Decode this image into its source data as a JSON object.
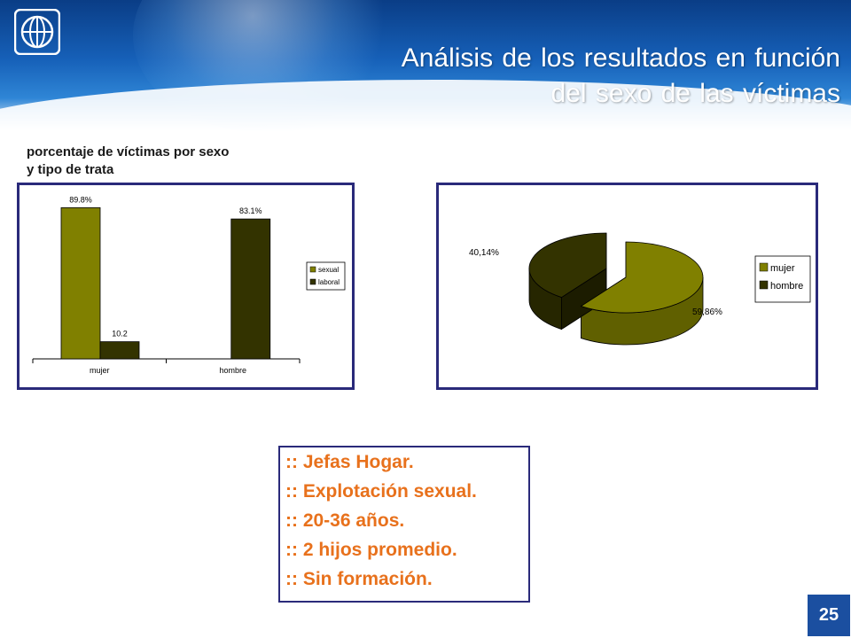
{
  "slide": {
    "title_line1": "Análisis de los resultados en función",
    "title_line2": "del sexo de las víctimas",
    "logo_icon": "globe-logo-icon",
    "page_number": "25"
  },
  "colors": {
    "olive": "#808000",
    "dark_olive": "#333300",
    "frame": "#2a2a7a",
    "accent_orange": "#e8711c",
    "banner_blue": "#1660b8"
  },
  "chart_data": [
    {
      "type": "bar",
      "title": "porcentaje de víctimas por sexo y tipo de trata",
      "title_line1": "porcentaje de víctimas por sexo",
      "title_line2": "y tipo de trata",
      "categories": [
        "mujer",
        "hombre"
      ],
      "series": [
        {
          "name": "sexual",
          "color": "#808000",
          "values": [
            89.8,
            null
          ],
          "labels": [
            "89.8%",
            ""
          ]
        },
        {
          "name": "laboral",
          "color": "#333300",
          "values": [
            10.2,
            83.1
          ],
          "labels": [
            "10.2",
            "83.1%"
          ]
        }
      ],
      "ylim": [
        0,
        100
      ],
      "grid": false,
      "legend": "right"
    },
    {
      "type": "pie",
      "labels": [
        "mujer",
        "hombre"
      ],
      "values": [
        59.86,
        40.14
      ],
      "data_labels": [
        "59,86%",
        "40,14%"
      ],
      "colors": [
        "#808000",
        "#333300"
      ],
      "legend": "right",
      "style": "3d-exploded"
    }
  ],
  "summary": {
    "items": [
      ":: Jefas Hogar.",
      ":: Explotación sexual.",
      ":: 20-36 años.",
      ":: 2 hijos promedio.",
      ":: Sin formación."
    ]
  }
}
